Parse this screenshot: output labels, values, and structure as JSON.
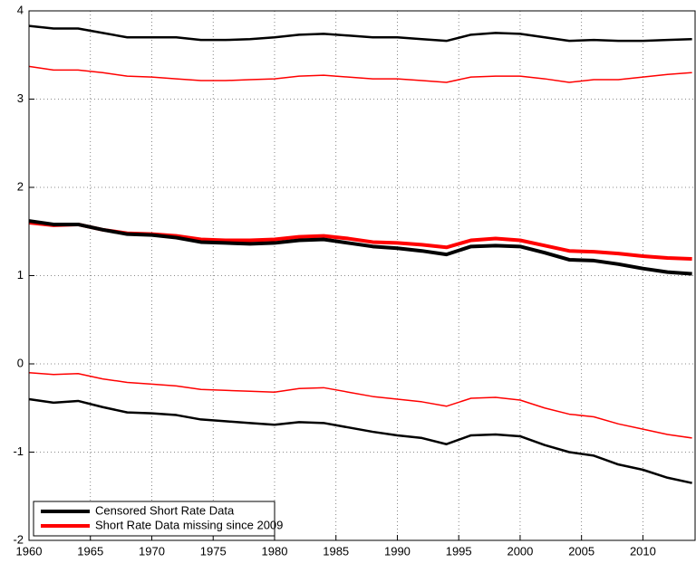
{
  "chart_data": {
    "type": "line",
    "x": [
      1960,
      1962,
      1964,
      1966,
      1968,
      1970,
      1972,
      1974,
      1976,
      1978,
      1980,
      1982,
      1984,
      1986,
      1988,
      1990,
      1992,
      1994,
      1996,
      1998,
      2000,
      2002,
      2004,
      2006,
      2008,
      2010,
      2012,
      2014
    ],
    "series": [
      {
        "color": "#000000",
        "width": 2.5,
        "values": [
          3.83,
          3.8,
          3.8,
          3.75,
          3.7,
          3.7,
          3.7,
          3.67,
          3.67,
          3.68,
          3.7,
          3.73,
          3.74,
          3.72,
          3.7,
          3.7,
          3.68,
          3.66,
          3.73,
          3.75,
          3.74,
          3.7,
          3.66,
          3.67,
          3.66,
          3.66,
          3.67,
          3.68
        ]
      },
      {
        "color": "#ff0000",
        "width": 1.5,
        "values": [
          3.37,
          3.33,
          3.33,
          3.3,
          3.26,
          3.25,
          3.23,
          3.21,
          3.21,
          3.22,
          3.23,
          3.26,
          3.27,
          3.25,
          3.23,
          3.23,
          3.21,
          3.19,
          3.25,
          3.26,
          3.26,
          3.23,
          3.19,
          3.22,
          3.22,
          3.25,
          3.28,
          3.3
        ]
      },
      {
        "name": "Short Rate Data missing since 2009",
        "color": "#ff0000",
        "width": 4,
        "values": [
          1.6,
          1.57,
          1.58,
          1.52,
          1.48,
          1.47,
          1.45,
          1.41,
          1.4,
          1.4,
          1.41,
          1.44,
          1.45,
          1.42,
          1.38,
          1.37,
          1.35,
          1.32,
          1.4,
          1.42,
          1.4,
          1.34,
          1.28,
          1.27,
          1.25,
          1.22,
          1.2,
          1.19
        ]
      },
      {
        "name": "Censored Short Rate Data",
        "color": "#000000",
        "width": 4,
        "values": [
          1.62,
          1.58,
          1.58,
          1.52,
          1.47,
          1.46,
          1.43,
          1.38,
          1.37,
          1.36,
          1.37,
          1.4,
          1.41,
          1.37,
          1.33,
          1.31,
          1.28,
          1.24,
          1.33,
          1.34,
          1.33,
          1.26,
          1.18,
          1.17,
          1.13,
          1.08,
          1.04,
          1.02
        ]
      },
      {
        "color": "#ff0000",
        "width": 1.5,
        "values": [
          -0.1,
          -0.12,
          -0.11,
          -0.17,
          -0.21,
          -0.23,
          -0.25,
          -0.29,
          -0.3,
          -0.31,
          -0.32,
          -0.28,
          -0.27,
          -0.32,
          -0.37,
          -0.4,
          -0.43,
          -0.48,
          -0.39,
          -0.38,
          -0.41,
          -0.5,
          -0.57,
          -0.6,
          -0.68,
          -0.74,
          -0.8,
          -0.84
        ]
      },
      {
        "color": "#000000",
        "width": 2.5,
        "values": [
          -0.4,
          -0.44,
          -0.42,
          -0.49,
          -0.55,
          -0.56,
          -0.58,
          -0.63,
          -0.65,
          -0.67,
          -0.69,
          -0.66,
          -0.67,
          -0.72,
          -0.77,
          -0.81,
          -0.84,
          -0.91,
          -0.81,
          -0.8,
          -0.82,
          -0.92,
          -1.0,
          -1.04,
          -1.14,
          -1.2,
          -1.29,
          -1.35
        ]
      }
    ],
    "legend_order": [
      3,
      2
    ],
    "xlim": [
      1960,
      2014.25
    ],
    "ylim": [
      -2,
      4
    ],
    "xticks": [
      1960,
      1965,
      1970,
      1975,
      1980,
      1985,
      1990,
      1995,
      2000,
      2005,
      2010
    ],
    "yticks": [
      -2,
      -1,
      0,
      1,
      2,
      3,
      4
    ],
    "grid": true,
    "legend_position": "lower left"
  }
}
